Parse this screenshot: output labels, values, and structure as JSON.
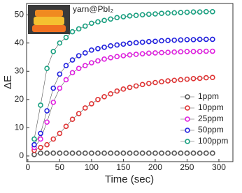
{
  "chart_data": {
    "type": "line",
    "annotation": "yarn@PbI₂",
    "x_label": "Time (sec)",
    "y_label": "ΔE",
    "xlim": [
      -2,
      322
    ],
    "xticks": [
      0,
      50,
      100,
      150,
      200,
      250,
      300
    ],
    "ylim": [
      -2,
      54
    ],
    "yticks": [
      0,
      10,
      20,
      30,
      40,
      50
    ],
    "legend": "lower right",
    "x": [
      10,
      20,
      30,
      40,
      50,
      60,
      70,
      80,
      90,
      100,
      110,
      120,
      130,
      140,
      150,
      160,
      170,
      180,
      190,
      200,
      210,
      220,
      230,
      240,
      250,
      260,
      270,
      280,
      290
    ],
    "series": [
      {
        "name": "1ppm",
        "color": "#555555",
        "values": [
          0.5,
          1,
          1,
          1,
          1,
          1,
          1,
          1,
          1,
          1,
          1,
          1,
          1,
          1,
          1,
          1,
          1,
          1,
          1,
          1,
          1,
          1,
          1,
          1,
          1,
          1,
          1,
          1,
          1
        ]
      },
      {
        "name": "10ppm",
        "color": "#e03535",
        "values": [
          2,
          3,
          4,
          6,
          8,
          10.5,
          13,
          15,
          17,
          18.5,
          20,
          21,
          22,
          23,
          23.7,
          24.3,
          24.8,
          25.3,
          25.7,
          26,
          26.3,
          26.6,
          26.8,
          27,
          27.2,
          27.4,
          27.5,
          27.7,
          27.8
        ]
      },
      {
        "name": "25ppm",
        "color": "#e020e0",
        "values": [
          3,
          6,
          12,
          19,
          24,
          27,
          29.5,
          31,
          32,
          33,
          33.7,
          34.3,
          34.8,
          35.2,
          35.5,
          35.8,
          36,
          36.2,
          36.4,
          36.5,
          36.6,
          36.7,
          36.8,
          36.9,
          37,
          37,
          37,
          37.1,
          37.1
        ]
      },
      {
        "name": "50ppm",
        "color": "#2020e0",
        "values": [
          4,
          8,
          16,
          24,
          29,
          32,
          34,
          35.5,
          36.5,
          37.5,
          38,
          38.5,
          39,
          39.3,
          39.6,
          39.9,
          40.1,
          40.3,
          40.5,
          40.6,
          40.8,
          40.9,
          41,
          41.1,
          41.2,
          41.2,
          41.3,
          41.3,
          41.3
        ]
      },
      {
        "name": "100ppm",
        "color": "#18a080",
        "values": [
          6,
          18,
          31,
          37,
          40,
          42,
          44,
          45,
          46,
          47,
          47.5,
          48,
          48.5,
          49,
          49.3,
          49.6,
          49.8,
          50,
          50.2,
          50.3,
          50.5,
          50.6,
          50.7,
          50.8,
          50.9,
          51,
          51,
          51.1,
          51.1
        ]
      }
    ]
  }
}
